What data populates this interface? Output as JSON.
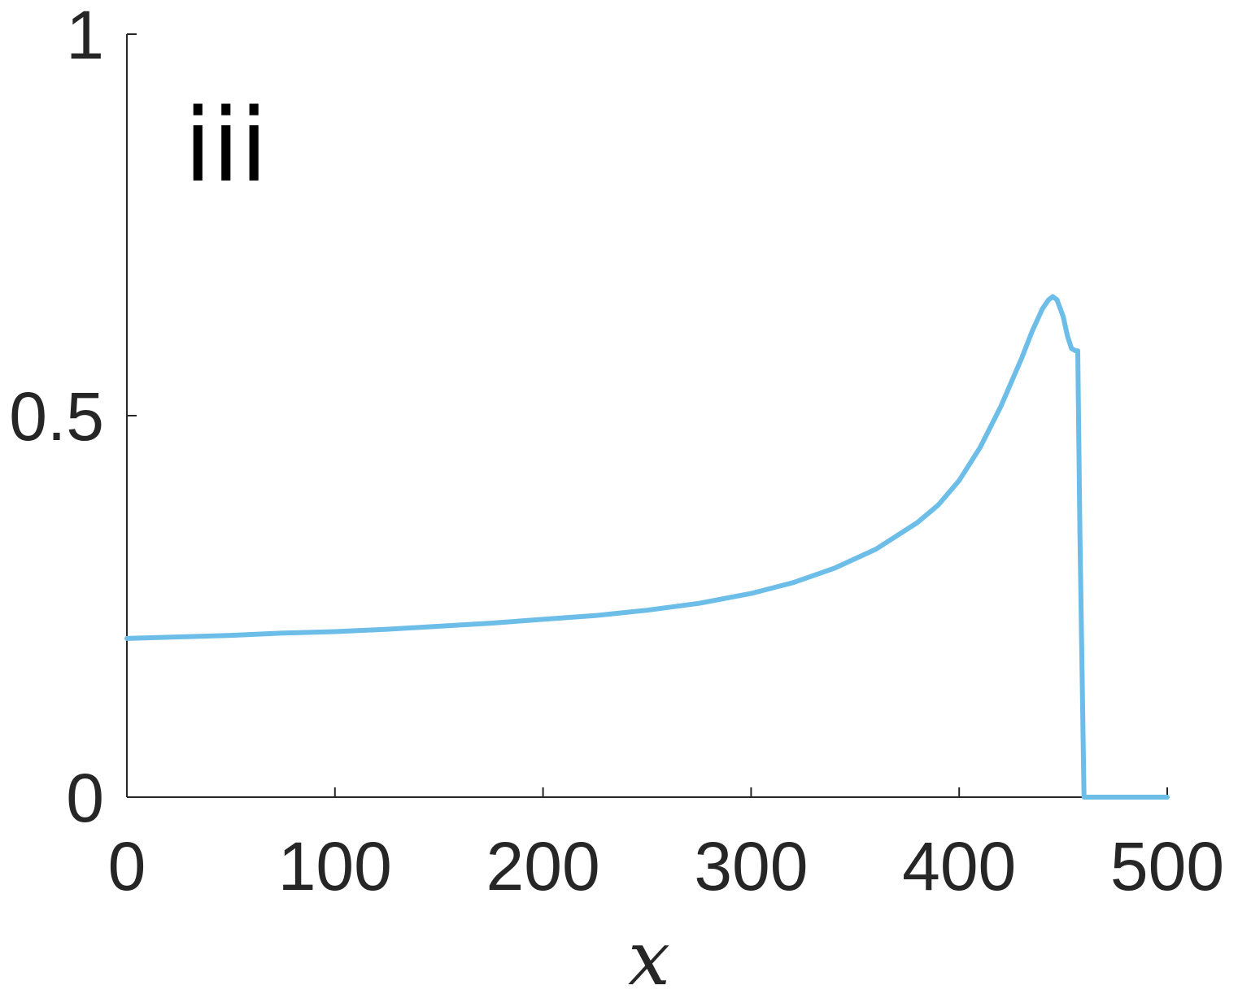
{
  "chart_data": {
    "type": "line",
    "panel_label": "iii",
    "title": "",
    "xlabel": "x",
    "ylabel": "",
    "xlim": [
      0,
      500
    ],
    "ylim": [
      0,
      1
    ],
    "xticks": [
      0,
      100,
      200,
      300,
      400,
      500
    ],
    "xtick_labels": [
      "0",
      "100",
      "200",
      "300",
      "400",
      "500"
    ],
    "yticks": [
      0,
      0.5,
      1
    ],
    "ytick_labels": [
      "0",
      "0.5",
      "1"
    ],
    "grid": false,
    "legend": "none",
    "series": [
      {
        "color": "#6cbde8",
        "x": [
          0,
          25,
          50,
          75,
          100,
          125,
          150,
          175,
          200,
          225,
          250,
          275,
          300,
          320,
          340,
          360,
          380,
          390,
          400,
          410,
          420,
          430,
          435,
          440,
          443,
          445,
          447,
          450,
          452,
          454,
          456,
          457,
          458,
          460,
          470,
          480,
          490,
          500
        ],
        "y": [
          0.208,
          0.21,
          0.212,
          0.215,
          0.217,
          0.22,
          0.224,
          0.228,
          0.233,
          0.238,
          0.245,
          0.254,
          0.267,
          0.281,
          0.3,
          0.325,
          0.36,
          0.383,
          0.415,
          0.458,
          0.512,
          0.575,
          0.61,
          0.64,
          0.652,
          0.656,
          0.652,
          0.63,
          0.605,
          0.588,
          0.585,
          0.585,
          0.35,
          0.0,
          0.0,
          0.0,
          0.0,
          0.0
        ]
      }
    ]
  }
}
